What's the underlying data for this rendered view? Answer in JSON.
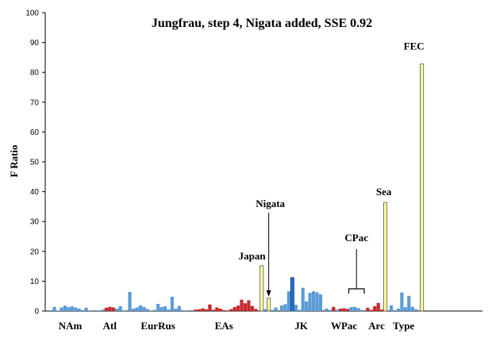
{
  "chart_data": {
    "type": "bar",
    "title": "Jungfrau, step 4, Nigata added, SSE 0.92",
    "ylabel": "F Ratio",
    "xlabel": "",
    "ylim": [
      0,
      100
    ],
    "yticks": [
      "0",
      "10",
      "20",
      "30",
      "40",
      "50",
      "60",
      "70",
      "80",
      "90",
      "100"
    ],
    "grid": false,
    "colors": {
      "blue": "#5B9BD5",
      "red": "#C62828",
      "yellow": "#FFFF99",
      "highlight": "#1F6FD0",
      "outline": "#333333"
    },
    "groups": [
      {
        "label": "NAm",
        "bars": [
          {
            "v": 0.3,
            "c": "blue"
          },
          {
            "v": 1.4,
            "c": "blue"
          },
          {
            "v": 0.2,
            "c": "blue"
          },
          {
            "v": 1.2,
            "c": "blue"
          },
          {
            "v": 1.8,
            "c": "blue"
          },
          {
            "v": 1.3,
            "c": "blue"
          },
          {
            "v": 1.6,
            "c": "blue"
          },
          {
            "v": 1.2,
            "c": "blue"
          },
          {
            "v": 0.8,
            "c": "blue"
          },
          {
            "v": 0.3,
            "c": "blue"
          },
          {
            "v": 1.1,
            "c": "blue"
          },
          {
            "v": 0.2,
            "c": "blue"
          }
        ]
      },
      {
        "label": "Atl",
        "bars": [
          {
            "v": 0.3,
            "c": "blue"
          },
          {
            "v": 0.2,
            "c": "blue"
          },
          {
            "v": 0.5,
            "c": "blue"
          },
          {
            "v": 1.1,
            "c": "red"
          },
          {
            "v": 1.4,
            "c": "red"
          },
          {
            "v": 1.2,
            "c": "red"
          },
          {
            "v": 0.8,
            "c": "blue"
          },
          {
            "v": 1.6,
            "c": "blue"
          },
          {
            "v": 0.2,
            "c": "blue"
          }
        ]
      },
      {
        "label": "EurRus",
        "bars": [
          {
            "v": 6.4,
            "c": "blue"
          },
          {
            "v": 0.8,
            "c": "blue"
          },
          {
            "v": 1.2,
            "c": "blue"
          },
          {
            "v": 1.9,
            "c": "blue"
          },
          {
            "v": 1.4,
            "c": "blue"
          },
          {
            "v": 0.7,
            "c": "blue"
          },
          {
            "v": 0.2,
            "c": "blue"
          },
          {
            "v": 0.4,
            "c": "blue"
          },
          {
            "v": 2.4,
            "c": "blue"
          },
          {
            "v": 1.3,
            "c": "blue"
          },
          {
            "v": 1.6,
            "c": "blue"
          },
          {
            "v": 0.5,
            "c": "blue"
          },
          {
            "v": 4.8,
            "c": "blue"
          },
          {
            "v": 0.8,
            "c": "blue"
          },
          {
            "v": 1.7,
            "c": "blue"
          },
          {
            "v": 0.3,
            "c": "blue"
          },
          {
            "v": 0.2,
            "c": "blue"
          }
        ]
      },
      {
        "label": "EAs",
        "bars": [
          {
            "v": 0.3,
            "c": "blue"
          },
          {
            "v": 0.5,
            "c": "red"
          },
          {
            "v": 0.6,
            "c": "red"
          },
          {
            "v": 0.9,
            "c": "red"
          },
          {
            "v": 0.6,
            "c": "red"
          },
          {
            "v": 2.2,
            "c": "red"
          },
          {
            "v": 0.4,
            "c": "red"
          },
          {
            "v": 1.2,
            "c": "red"
          },
          {
            "v": 0.8,
            "c": "red"
          },
          {
            "v": 0.3,
            "c": "red"
          },
          {
            "v": 0.2,
            "c": "red"
          },
          {
            "v": 0.6,
            "c": "red"
          },
          {
            "v": 1.3,
            "c": "red"
          },
          {
            "v": 1.8,
            "c": "red"
          },
          {
            "v": 3.8,
            "c": "red"
          },
          {
            "v": 2.6,
            "c": "red"
          },
          {
            "v": 3.6,
            "c": "red"
          },
          {
            "v": 1.7,
            "c": "red"
          },
          {
            "v": 0.7,
            "c": "red"
          }
        ]
      },
      {
        "label": "",
        "bars": [
          {
            "v": 15.2,
            "c": "yellow"
          },
          {
            "v": 0.6,
            "c": "blue"
          },
          {
            "v": 4.3,
            "c": "yellow"
          },
          {
            "v": 0.4,
            "c": "blue"
          },
          {
            "v": 1.2,
            "c": "blue"
          }
        ]
      },
      {
        "label": "JK",
        "bars": [
          {
            "v": 1.9,
            "c": "blue"
          },
          {
            "v": 2.3,
            "c": "blue"
          },
          {
            "v": 6.6,
            "c": "blue"
          },
          {
            "v": 11.2,
            "c": "highlight"
          },
          {
            "v": 2.1,
            "c": "blue"
          },
          {
            "v": 0.4,
            "c": "blue"
          },
          {
            "v": 7.8,
            "c": "blue"
          },
          {
            "v": 3.2,
            "c": "blue"
          },
          {
            "v": 6.1,
            "c": "blue"
          },
          {
            "v": 6.6,
            "c": "blue"
          },
          {
            "v": 6.3,
            "c": "blue"
          },
          {
            "v": 5.6,
            "c": "blue"
          }
        ]
      },
      {
        "label": "WPac",
        "bars": [
          {
            "v": 0.8,
            "c": "blue"
          },
          {
            "v": 0.4,
            "c": "blue"
          },
          {
            "v": 1.4,
            "c": "red"
          },
          {
            "v": 0.5,
            "c": "blue"
          },
          {
            "v": 0.8,
            "c": "red"
          },
          {
            "v": 0.9,
            "c": "red"
          },
          {
            "v": 0.7,
            "c": "red"
          },
          {
            "v": 1.3,
            "c": "blue"
          },
          {
            "v": 1.4,
            "c": "blue"
          },
          {
            "v": 1.0,
            "c": "blue"
          },
          {
            "v": 0.4,
            "c": "blue"
          }
        ]
      },
      {
        "label": "Arc",
        "bars": [
          {
            "v": 1.1,
            "c": "red"
          },
          {
            "v": 0.4,
            "c": "red"
          },
          {
            "v": 1.6,
            "c": "red"
          },
          {
            "v": 2.7,
            "c": "red"
          },
          {
            "v": 0.5,
            "c": "red"
          },
          {
            "v": 36.4,
            "c": "yellow"
          }
        ]
      },
      {
        "label": "Type",
        "bars": [
          {
            "v": 1.9,
            "c": "blue"
          },
          {
            "v": 0.3,
            "c": "blue"
          },
          {
            "v": 0.8,
            "c": "blue"
          },
          {
            "v": 6.2,
            "c": "blue"
          },
          {
            "v": 1.3,
            "c": "blue"
          },
          {
            "v": 5.1,
            "c": "blue"
          },
          {
            "v": 1.4,
            "c": "blue"
          },
          {
            "v": 0.6,
            "c": "blue"
          }
        ]
      },
      {
        "label": "",
        "bars": [
          {
            "v": 82.8,
            "c": "yellow"
          }
        ]
      }
    ],
    "annotations": [
      {
        "label": "FEC",
        "target": "bar-last"
      },
      {
        "label": "Sea",
        "target": "Arc-yellow"
      },
      {
        "label": "Japan",
        "target": "first-yellow"
      },
      {
        "label": "Nigata",
        "target": "second-yellow",
        "arrow": true
      },
      {
        "label": "CPac",
        "target": "WPac-range",
        "bracket": true
      }
    ]
  }
}
